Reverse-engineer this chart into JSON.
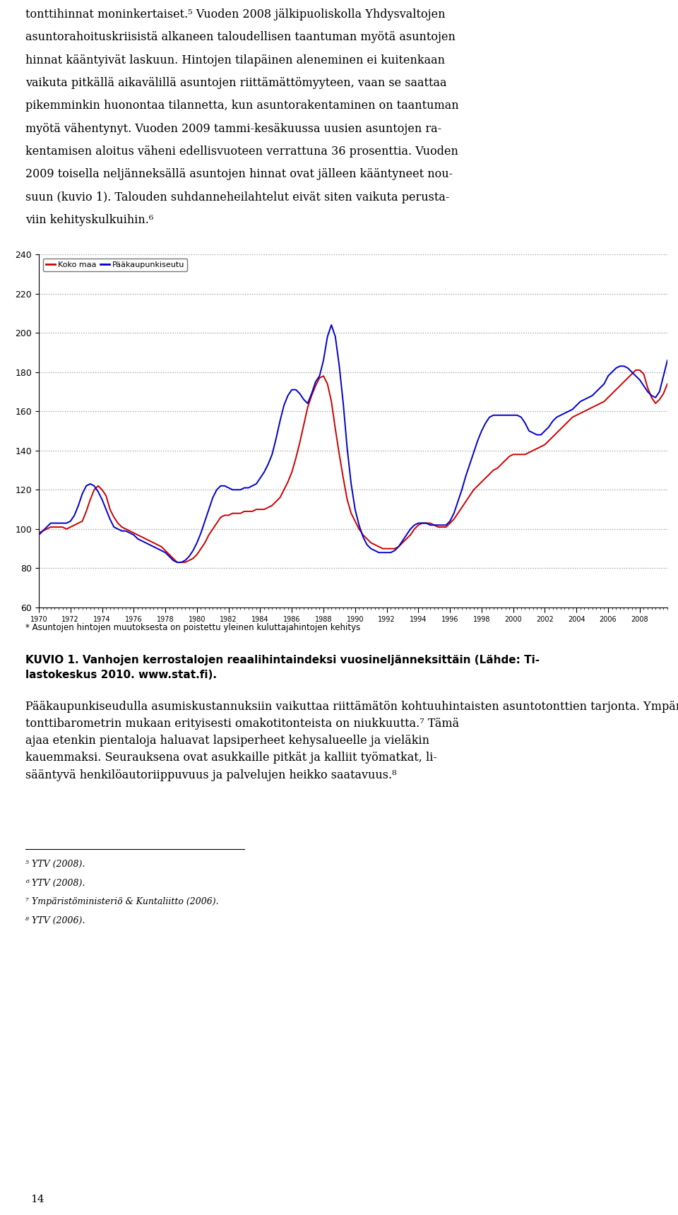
{
  "ylim": [
    60,
    240
  ],
  "yticks": [
    60,
    80,
    100,
    120,
    140,
    160,
    180,
    200,
    220,
    240
  ],
  "legend_koko": "Koko maa",
  "legend_paa": "Pääkaupunkiseutu",
  "koko_color": "#cc0000",
  "paa_color": "#0000cc",
  "chart_bg": "#ffffff",
  "grid_color": "#999999",
  "x_labels": [
    "1970",
    "1972",
    "1974",
    "1976",
    "1978",
    "1980",
    "1982",
    "1984",
    "1986",
    "1988",
    "1990",
    "1992",
    "1994",
    "1996",
    "1998",
    "2000",
    "2002",
    "2004",
    "2006",
    "2008"
  ],
  "chart_note": "* Asuntojen hintojen muutoksesta on poistettu yleinen kuluttajahintojen kehitys",
  "top_text_lines": [
    "tonttihinnat moninkertaiset.⁵ Vuoden 2008 jälkipuoliskolla Yhdysvaltojen",
    "asuntorahoituskriisistä alkaneen taloudellisen taantuman myötä asuntojen",
    "hinnat kääntyivät laskuun. Hintojen tilapäinen aleneminen ei kuitenkaan",
    "vaikuta pitkällä aikavälillä asuntojen riittämättömyyteen, vaan se saattaa",
    "pikemminkin huonontaa tilannetta, kun asuntorakentaminen on taantuman",
    "myötä vähentynyt. Vuoden 2009 tammi-kesäkuussa uusien asuntojen ra-",
    "kentamisen aloitus väheni edellisvuoteen verrattuna 36 prosenttia. Vuoden",
    "2009 toisella neljänneksällä asuntojen hinnat ovat jälleen kääntyneet nou-",
    "suun (kuvio 1). Talouden suhdanneheilahtelut eivät siten vaikuta perusta-",
    "viin kehityskulkuihin.⁶"
  ],
  "caption_lines": [
    "KUVIO 1. Vanhojen kerrostalojen reaalihintaindeksi vuosineljänneksittäin (Lähde: Ti-",
    "lastokeskus 2010. www.stat.fi)."
  ],
  "para2_lines": [
    "Pääkaupunkiseudulla asumiskustannuksiin vaikuttaa riittämätön kohtuuhintaisten asuntotonttien tarjonta. Ympäristöministeriön ja Kuntaliiton",
    "tonttibarometrin mukaan erityisesti omakotitonteista on niukkuutta.⁷ Tämä",
    "ajaa etenkin pientaloja haluavat lapsiperheet kehysalueelle ja vieläkin",
    "kauemmaksi. Seurauksena ovat asukkaille pitkät ja kalliit työmatkat, li-",
    "sääntyvä henkilöautoriippuvuus ja palvelujen heikko saatavuus.⁸"
  ],
  "footnote_lines": [
    "⁵ YTV (2008).",
    "⁶ YTV (2008).",
    "⁷ Ympäristöministeriö & Kuntaliitto (2006).",
    "⁸ YTV (2006)."
  ],
  "page_number": "14"
}
